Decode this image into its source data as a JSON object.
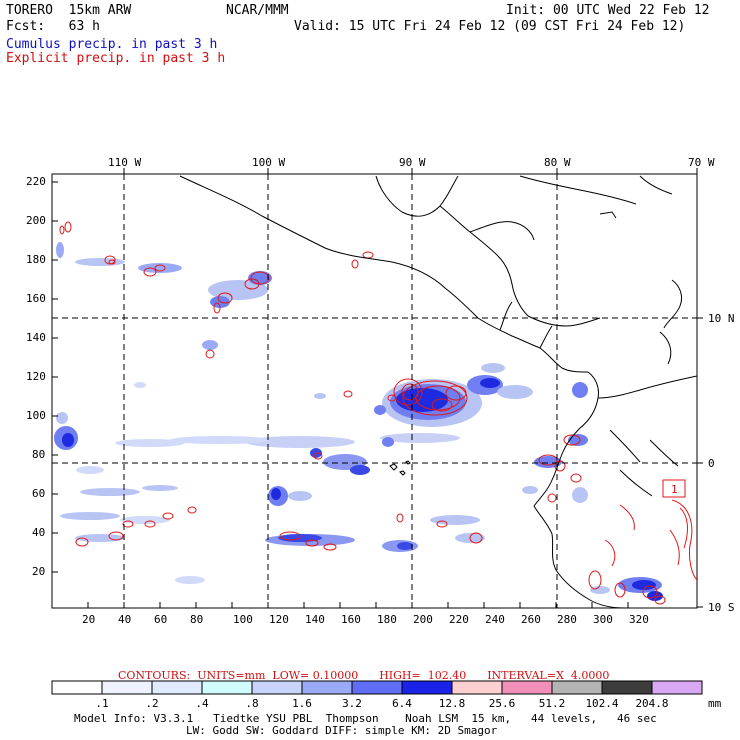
{
  "header": {
    "model": "TORERO  15km ARW",
    "org": "NCAR/MMM",
    "init": "Init: 00 UTC Wed 22 Feb 12",
    "fcst": "Fcst:   63 h",
    "valid": "Valid: 15 UTC Fri 24 Feb 12 (09 CST Fri 24 Feb 12)",
    "legend_cumulus": "Cumulus precip. in past 3 h",
    "legend_explicit": "Explicit precip. in past 3 h"
  },
  "map": {
    "top_lon_labels": [
      "110 W",
      "100 W",
      "90 W",
      "80 W",
      "70 W"
    ],
    "right_lat_labels": [
      "10 N",
      "0",
      "10 S"
    ],
    "left_y_ticks": [
      "220",
      "200",
      "180",
      "160",
      "140",
      "120",
      "100",
      "80",
      "60",
      "40",
      "20"
    ],
    "bottom_x_ticks": [
      "20",
      "40",
      "60",
      "80",
      "100",
      "120",
      "140",
      "160",
      "180",
      "200",
      "220",
      "240",
      "260",
      "280",
      "300",
      "320"
    ],
    "box_label": "1",
    "colors": {
      "cumulus_light": "#b8c4f4",
      "cumulus_mid": "#6f7ef0",
      "cumulus_dark": "#1d2ae0",
      "explicit": "#e01818",
      "coast": "#000000"
    }
  },
  "contours_line": "CONTOURS:  UNITS=mm  LOW= 0.10000      HIGH=  102.40      INTERVAL=X  4.0000",
  "colorbar": {
    "labels": [
      ".1",
      ".2",
      ".4",
      ".8",
      "1.6",
      "3.2",
      "6.4",
      "12.8",
      "25.6",
      "51.2",
      "102.4",
      "204.8"
    ],
    "unit": "mm",
    "colors": [
      "#ffffff",
      "#eef3ff",
      "#e0ebff",
      "#d2fbfb",
      "#c8d4fa",
      "#9aaaf6",
      "#5f6ef4",
      "#1a22e8",
      "#fcd0d0",
      "#f090b8",
      "#b4b4b4",
      "#3c3c3c",
      "#d8a8f4"
    ]
  },
  "footer": {
    "line1": "Model Info: V3.3.1   Tiedtke YSU PBL  Thompson    Noah LSM  15 km,   44 levels,   46 sec",
    "line2": "LW: Godd SW: Goddard DIFF: simple KM: 2D Smagor"
  }
}
